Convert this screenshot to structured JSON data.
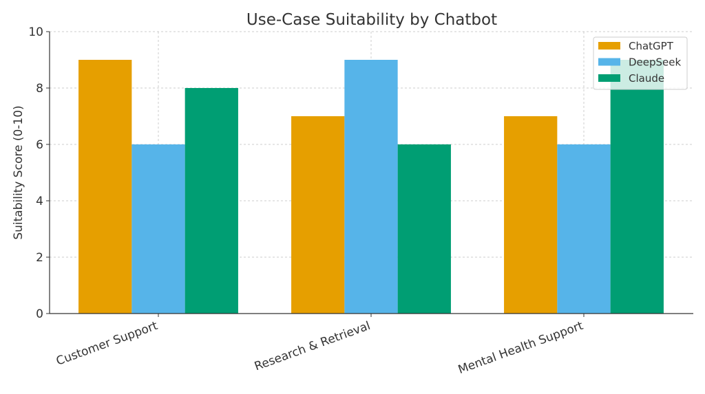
{
  "chart_data": {
    "type": "bar",
    "title": "Use-Case Suitability by Chatbot",
    "xlabel": "",
    "ylabel": "Suitability Score (0-10)",
    "ylim": [
      0,
      10
    ],
    "yticks": [
      0,
      2,
      4,
      6,
      8,
      10
    ],
    "grid": true,
    "legend_position": "top-right",
    "categories": [
      "Customer Support",
      "Research & Retrieval",
      "Mental Health Support"
    ],
    "series": [
      {
        "name": "ChatGPT",
        "color": "#E69F00",
        "values": [
          9,
          7,
          7
        ]
      },
      {
        "name": "DeepSeek",
        "color": "#56B4E9",
        "values": [
          6,
          9,
          6
        ]
      },
      {
        "name": "Claude",
        "color": "#009E73",
        "values": [
          8,
          6,
          9
        ]
      }
    ]
  }
}
